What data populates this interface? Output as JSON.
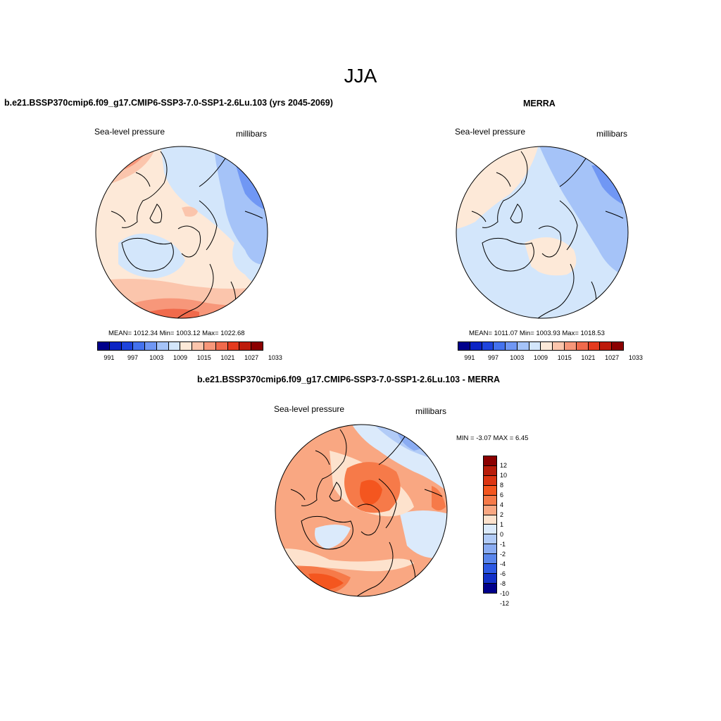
{
  "figure": {
    "season": "JJA"
  },
  "panels": {
    "model": {
      "title": "b.e21.BSSP370cmip6.f09_g17.CMIP6-SSP3-7.0-SSP1-2.6Lu.103 (yrs 2045-2069)",
      "left_label": "Sea-level pressure",
      "right_label": "millibars",
      "stats": "MEAN= 1012.34  Min= 1003.12  Max= 1022.68"
    },
    "obs": {
      "title": "MERRA",
      "left_label": "Sea-level pressure",
      "right_label": "millibars",
      "stats": "MEAN= 1011.07  Min= 1003.93  Max= 1018.53"
    },
    "diff": {
      "title": "b.e21.BSSP370cmip6.f09_g17.CMIP6-SSP3-7.0-SSP1-2.6Lu.103 - MERRA",
      "left_label": "Sea-level pressure",
      "right_label": "millibars",
      "stats": "MIN =  -3.07 MAX =   6.45"
    }
  },
  "abs_colorbar": {
    "colors": [
      "#00008b",
      "#0b24c4",
      "#1e44dc",
      "#4472ee",
      "#7097f4",
      "#a5c3f8",
      "#d3e6fb",
      "#fde9d8",
      "#fbc5ac",
      "#f7977a",
      "#f06a4c",
      "#e43a1e",
      "#bd1a0a",
      "#8b0000"
    ],
    "tick_labels": [
      "991",
      "997",
      "1003",
      "1009",
      "1015",
      "1021",
      "1027",
      "1033"
    ]
  },
  "diff_colorbar": {
    "colors_top_to_bottom": [
      "#8b0000",
      "#b81c0a",
      "#dc3512",
      "#f4561f",
      "#f67a49",
      "#f9a782",
      "#fde2cd",
      "#dbeafb",
      "#b1cbf7",
      "#8aacf2",
      "#5a86ec",
      "#2d59e4",
      "#1230c8",
      "#00008b"
    ],
    "tick_labels": [
      "12",
      "10",
      "8",
      "6",
      "4",
      "2",
      "1",
      "0",
      "-1",
      "-2",
      "-4",
      "-6",
      "-8",
      "-10",
      "-12"
    ]
  },
  "map_colors": {
    "ocean_neutral": "#fde9d8",
    "slight_low": "#d3e6fb",
    "low": "#a5c3f8",
    "lower": "#7097f4",
    "slight_high": "#fbc5ac",
    "high": "#f7977a",
    "higher": "#f06a4c",
    "diff_neutral": "#fde2cd",
    "diff_pos2": "#f9a782",
    "diff_pos4": "#f67a49",
    "diff_pos6": "#f4561f",
    "diff_neg1": "#dbeafb",
    "diff_neg2": "#b1cbf7",
    "diff_neg4": "#8aacf2"
  }
}
